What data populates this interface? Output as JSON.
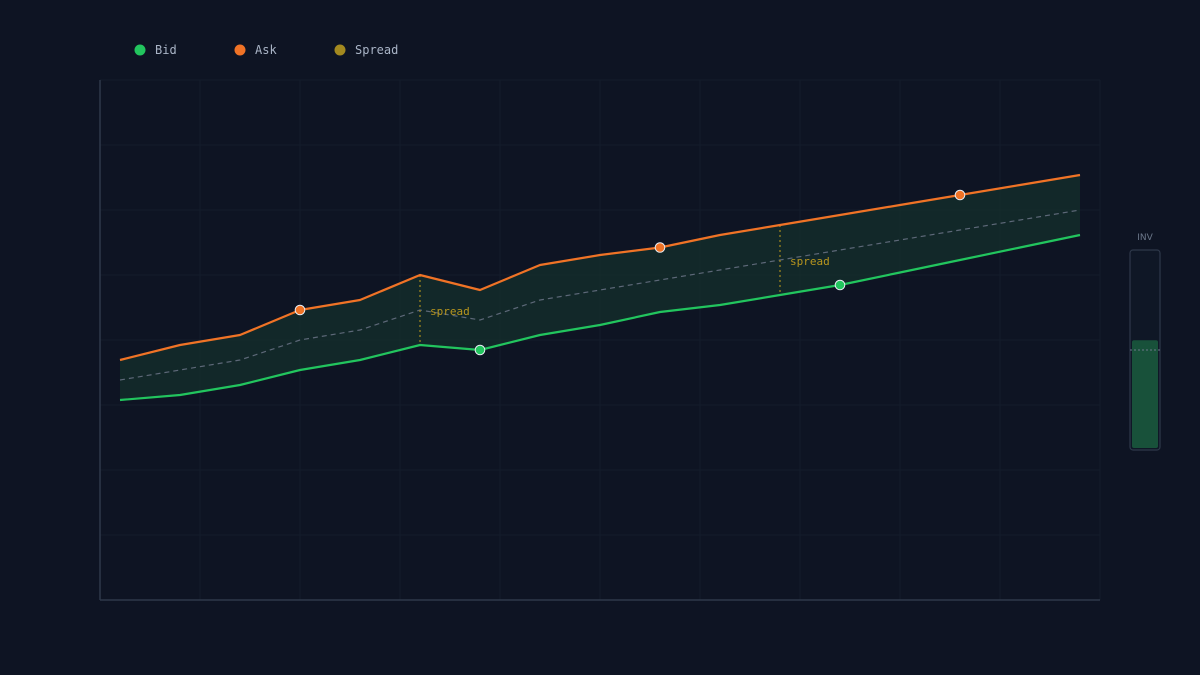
{
  "chart_data": {
    "type": "line",
    "x": [
      0,
      1,
      2,
      3,
      4,
      5,
      6,
      7,
      8,
      9,
      10,
      11,
      12,
      13,
      14,
      15,
      16
    ],
    "series": [
      {
        "name": "Bid",
        "color": "#22c55e",
        "values": [
          20,
          21,
          23,
          26,
          28,
          31,
          30,
          33,
          35,
          37.6,
          39,
          41,
          43,
          45.5,
          48,
          50.5,
          53
        ]
      },
      {
        "name": "Ask",
        "color": "#f07326",
        "values": [
          28,
          31,
          33,
          38,
          40,
          45,
          42,
          47,
          49,
          50.5,
          53,
          55,
          57,
          59,
          61,
          63,
          65
        ]
      },
      {
        "name": "Spread",
        "color": "#a3891f"
      }
    ],
    "midline": [
      24,
      26,
      28,
      32,
      34,
      38,
      36,
      40,
      42,
      44,
      46,
      48,
      50,
      52,
      54,
      56,
      58
    ],
    "markers": {
      "bid": [
        6,
        12
      ],
      "ask": [
        3,
        9,
        14
      ]
    },
    "annotations": [
      {
        "x": 5,
        "label": "spread"
      },
      {
        "x": 11,
        "label": "spread"
      }
    ],
    "inventory": {
      "label": "INV",
      "level": 0.55,
      "target": 0.5
    },
    "ylim": [
      -20,
      84
    ],
    "xlim": [
      0,
      16
    ],
    "grid": true,
    "legend": "top-left"
  }
}
